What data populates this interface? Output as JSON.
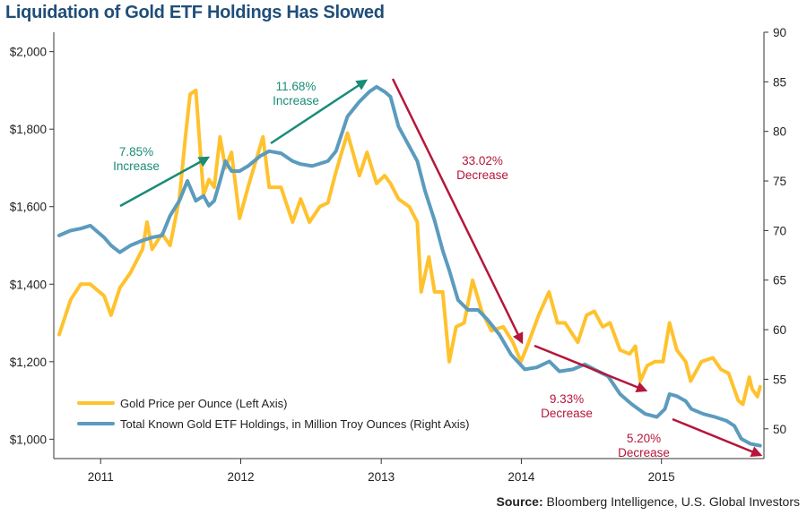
{
  "title": "Liquidation of Gold ETF Holdings Has Slowed",
  "source_label": "Source:",
  "source_text": "Bloomberg Intelligence, U.S. Global Investors",
  "colors": {
    "gold": "#FFC22E",
    "etf": "#5B9BBE",
    "increase": "#1A8C78",
    "decrease": "#B5163A",
    "title": "#1F4E79"
  },
  "chart_data": {
    "type": "line",
    "x_axis": {
      "type": "date",
      "range": [
        "2010-09",
        "2015-09"
      ],
      "tick_labels": [
        "2011",
        "2012",
        "2013",
        "2014",
        "2015"
      ]
    },
    "left_axis": {
      "range": [
        950,
        2050
      ],
      "ticks": [
        1000,
        1200,
        1400,
        1600,
        1800,
        2000
      ],
      "tick_labels": [
        "$1,000",
        "$1,200",
        "$1,400",
        "$1,600",
        "$1,800",
        "$2,000"
      ]
    },
    "right_axis": {
      "range": [
        47,
        90
      ],
      "ticks": [
        50,
        55,
        60,
        65,
        70,
        75,
        80,
        85,
        90
      ],
      "tick_labels": [
        "50",
        "55",
        "60",
        "65",
        "70",
        "75",
        "80",
        "85",
        "90"
      ]
    },
    "grid": false,
    "legend_position": "bottom-left",
    "series": [
      {
        "name": "Gold Price per Ounce (Left Axis)",
        "axis": "left",
        "points": [
          [
            "2010-09-15",
            1270
          ],
          [
            "2010-10-15",
            1360
          ],
          [
            "2010-11-10",
            1400
          ],
          [
            "2010-12-05",
            1400
          ],
          [
            "2011-01-10",
            1370
          ],
          [
            "2011-01-28",
            1320
          ],
          [
            "2011-02-20",
            1390
          ],
          [
            "2011-03-20",
            1430
          ],
          [
            "2011-04-20",
            1490
          ],
          [
            "2011-05-02",
            1560
          ],
          [
            "2011-05-15",
            1490
          ],
          [
            "2011-06-10",
            1530
          ],
          [
            "2011-07-01",
            1500
          ],
          [
            "2011-07-25",
            1620
          ],
          [
            "2011-08-10",
            1780
          ],
          [
            "2011-08-22",
            1890
          ],
          [
            "2011-09-06",
            1900
          ],
          [
            "2011-09-26",
            1630
          ],
          [
            "2011-10-10",
            1670
          ],
          [
            "2011-10-24",
            1650
          ],
          [
            "2011-11-08",
            1780
          ],
          [
            "2011-11-22",
            1700
          ],
          [
            "2011-12-08",
            1740
          ],
          [
            "2011-12-29",
            1570
          ],
          [
            "2012-01-20",
            1650
          ],
          [
            "2012-02-28",
            1780
          ],
          [
            "2012-03-15",
            1650
          ],
          [
            "2012-04-15",
            1650
          ],
          [
            "2012-05-15",
            1560
          ],
          [
            "2012-06-05",
            1620
          ],
          [
            "2012-06-28",
            1560
          ],
          [
            "2012-07-25",
            1600
          ],
          [
            "2012-08-15",
            1610
          ],
          [
            "2012-09-05",
            1690
          ],
          [
            "2012-10-05",
            1790
          ],
          [
            "2012-11-05",
            1680
          ],
          [
            "2012-11-25",
            1740
          ],
          [
            "2012-12-20",
            1660
          ],
          [
            "2013-01-10",
            1680
          ],
          [
            "2013-01-25",
            1660
          ],
          [
            "2013-02-15",
            1620
          ],
          [
            "2013-03-15",
            1600
          ],
          [
            "2013-04-05",
            1560
          ],
          [
            "2013-04-15",
            1380
          ],
          [
            "2013-05-05",
            1470
          ],
          [
            "2013-05-20",
            1380
          ],
          [
            "2013-06-10",
            1380
          ],
          [
            "2013-06-27",
            1200
          ],
          [
            "2013-07-15",
            1290
          ],
          [
            "2013-08-05",
            1300
          ],
          [
            "2013-08-27",
            1410
          ],
          [
            "2013-09-20",
            1330
          ],
          [
            "2013-10-15",
            1280
          ],
          [
            "2013-11-15",
            1290
          ],
          [
            "2013-12-10",
            1250
          ],
          [
            "2013-12-31",
            1200
          ],
          [
            "2014-01-20",
            1250
          ],
          [
            "2014-02-15",
            1320
          ],
          [
            "2014-03-14",
            1380
          ],
          [
            "2014-04-05",
            1300
          ],
          [
            "2014-04-25",
            1300
          ],
          [
            "2014-05-28",
            1250
          ],
          [
            "2014-06-20",
            1320
          ],
          [
            "2014-07-10",
            1330
          ],
          [
            "2014-08-01",
            1290
          ],
          [
            "2014-08-20",
            1300
          ],
          [
            "2014-09-15",
            1230
          ],
          [
            "2014-10-10",
            1220
          ],
          [
            "2014-10-25",
            1240
          ],
          [
            "2014-11-07",
            1150
          ],
          [
            "2014-11-25",
            1190
          ],
          [
            "2014-12-15",
            1200
          ],
          [
            "2015-01-05",
            1200
          ],
          [
            "2015-01-22",
            1300
          ],
          [
            "2015-02-10",
            1230
          ],
          [
            "2015-03-05",
            1200
          ],
          [
            "2015-03-18",
            1150
          ],
          [
            "2015-04-15",
            1200
          ],
          [
            "2015-05-15",
            1210
          ],
          [
            "2015-06-05",
            1180
          ],
          [
            "2015-06-25",
            1170
          ],
          [
            "2015-07-20",
            1100
          ],
          [
            "2015-08-01",
            1090
          ],
          [
            "2015-08-18",
            1160
          ],
          [
            "2015-08-25",
            1130
          ],
          [
            "2015-09-08",
            1110
          ],
          [
            "2015-09-15",
            1135
          ]
        ]
      },
      {
        "name": "Total Known Gold ETF Holdings, in Million Troy Ounces (Right Axis)",
        "axis": "right",
        "points": [
          [
            "2010-09-15",
            69.5
          ],
          [
            "2010-10-15",
            70.0
          ],
          [
            "2010-11-10",
            70.2
          ],
          [
            "2010-12-05",
            70.5
          ],
          [
            "2011-01-10",
            69.3
          ],
          [
            "2011-01-28",
            68.5
          ],
          [
            "2011-02-20",
            67.8
          ],
          [
            "2011-03-20",
            68.5
          ],
          [
            "2011-04-20",
            69.0
          ],
          [
            "2011-05-15",
            69.3
          ],
          [
            "2011-06-10",
            69.5
          ],
          [
            "2011-07-01",
            71.5
          ],
          [
            "2011-07-25",
            73.0
          ],
          [
            "2011-08-15",
            75.0
          ],
          [
            "2011-09-06",
            73.0
          ],
          [
            "2011-09-26",
            73.5
          ],
          [
            "2011-10-10",
            72.5
          ],
          [
            "2011-10-24",
            73.0
          ],
          [
            "2011-11-08",
            75.0
          ],
          [
            "2011-11-22",
            77.0
          ],
          [
            "2011-12-08",
            76.0
          ],
          [
            "2011-12-29",
            76.0
          ],
          [
            "2012-01-20",
            76.5
          ],
          [
            "2012-02-20",
            77.5
          ],
          [
            "2012-03-15",
            78.0
          ],
          [
            "2012-04-15",
            77.8
          ],
          [
            "2012-05-15",
            77.0
          ],
          [
            "2012-06-05",
            76.7
          ],
          [
            "2012-07-05",
            76.5
          ],
          [
            "2012-08-15",
            77.0
          ],
          [
            "2012-09-05",
            78.0
          ],
          [
            "2012-10-05",
            81.5
          ],
          [
            "2012-11-05",
            83.0
          ],
          [
            "2012-12-01",
            84.0
          ],
          [
            "2012-12-20",
            84.5
          ],
          [
            "2013-01-10",
            84.0
          ],
          [
            "2013-01-25",
            83.5
          ],
          [
            "2013-02-15",
            80.5
          ],
          [
            "2013-03-15",
            78.5
          ],
          [
            "2013-04-05",
            77.0
          ],
          [
            "2013-04-25",
            74.0
          ],
          [
            "2013-05-20",
            71.0
          ],
          [
            "2013-06-10",
            68.0
          ],
          [
            "2013-06-27",
            66.0
          ],
          [
            "2013-07-20",
            63.0
          ],
          [
            "2013-08-15",
            62.0
          ],
          [
            "2013-09-10",
            62.0
          ],
          [
            "2013-10-05",
            61.0
          ],
          [
            "2013-11-05",
            59.5
          ],
          [
            "2013-12-05",
            57.5
          ],
          [
            "2014-01-10",
            56.0
          ],
          [
            "2014-02-10",
            56.2
          ],
          [
            "2014-03-15",
            56.8
          ],
          [
            "2014-04-10",
            55.8
          ],
          [
            "2014-05-15",
            56.0
          ],
          [
            "2014-06-15",
            56.5
          ],
          [
            "2014-07-10",
            56.0
          ],
          [
            "2014-08-15",
            55.3
          ],
          [
            "2014-09-15",
            53.5
          ],
          [
            "2014-10-15",
            52.5
          ],
          [
            "2014-11-20",
            51.5
          ],
          [
            "2014-12-20",
            51.2
          ],
          [
            "2015-01-10",
            52.0
          ],
          [
            "2015-01-22",
            53.5
          ],
          [
            "2015-02-10",
            53.3
          ],
          [
            "2015-03-05",
            52.8
          ],
          [
            "2015-03-20",
            52.0
          ],
          [
            "2015-04-20",
            51.5
          ],
          [
            "2015-05-20",
            51.2
          ],
          [
            "2015-06-20",
            50.8
          ],
          [
            "2015-07-10",
            50.3
          ],
          [
            "2015-07-28",
            49.0
          ],
          [
            "2015-08-20",
            48.5
          ],
          [
            "2015-09-15",
            48.3
          ]
        ]
      }
    ],
    "annotations": [
      {
        "id": "inc1",
        "pct": "7.85%",
        "label": "Increase",
        "kind": "increase"
      },
      {
        "id": "inc2",
        "pct": "11.68%",
        "label": "Increase",
        "kind": "increase"
      },
      {
        "id": "dec1",
        "pct": "33.02%",
        "label": "Decrease",
        "kind": "decrease"
      },
      {
        "id": "dec2",
        "pct": "9.33%",
        "label": "Decrease",
        "kind": "decrease"
      },
      {
        "id": "dec3",
        "pct": "5.20%",
        "label": "Decrease",
        "kind": "decrease"
      }
    ]
  }
}
